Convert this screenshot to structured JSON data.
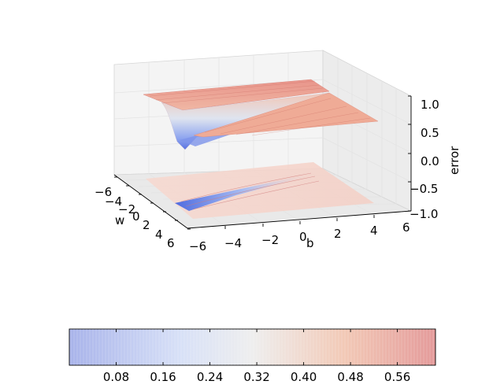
{
  "chart_data": {
    "type": "surface3d",
    "title": "",
    "axes": {
      "x": {
        "label": "w",
        "ticks": [
          "−6",
          "−4",
          "−2",
          "0",
          "2",
          "4",
          "6"
        ],
        "range": [
          -6,
          6
        ]
      },
      "y": {
        "label": "b",
        "ticks": [
          "−6",
          "−4",
          "−2",
          "0",
          "2",
          "4",
          "6"
        ],
        "range": [
          -6,
          6
        ]
      },
      "z": {
        "label": "error",
        "ticks": [
          "−1.0",
          "−0.5",
          "0.0",
          "0.5",
          "1.0"
        ],
        "range": [
          -1,
          1
        ]
      }
    },
    "surface": {
      "description_values": {
        "plateau_level": 0.62,
        "valley_min": 0.0,
        "contour_offset": -1.0
      }
    },
    "colorbar": {
      "orientation": "horizontal",
      "colormap": "coolwarm",
      "range": [
        0.0,
        0.625
      ],
      "ticks": [
        "0.08",
        "0.16",
        "0.24",
        "0.32",
        "0.40",
        "0.48",
        "0.56"
      ],
      "tick_values": [
        0.08,
        0.16,
        0.24,
        0.32,
        0.4,
        0.48,
        0.56
      ]
    },
    "colors": {
      "low": "#3b4cc0",
      "mid": "#dddddd",
      "high": "#b40426"
    },
    "grid": true
  }
}
